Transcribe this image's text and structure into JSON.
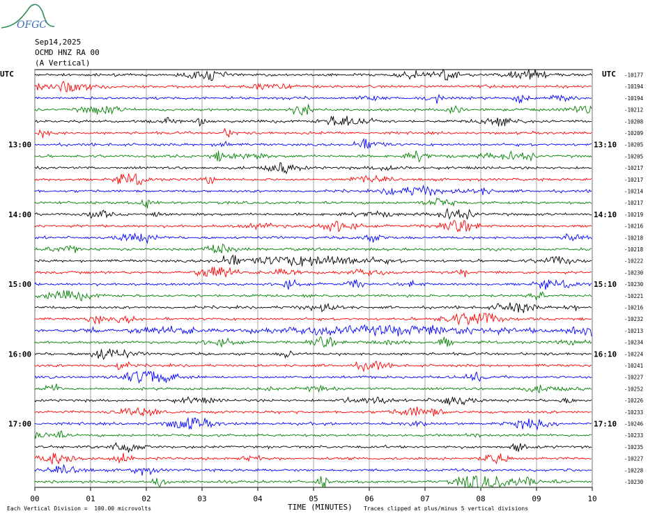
{
  "header": {
    "date": "Sep14,2025",
    "station": "OCMD HNZ RA 00",
    "component": "(A Vertical)",
    "logo_text": "OFGC"
  },
  "left_axis": {
    "unit_label": "UTC",
    "hour_labels": [
      "13:00",
      "14:00",
      "15:00",
      "16:00",
      "17:00"
    ]
  },
  "right_axis": {
    "unit_label": "UTC",
    "hour_labels": [
      "13:10",
      "14:10",
      "15:10",
      "16:10",
      "17:10"
    ],
    "offsets": [
      "-10177",
      "-10194",
      "-10194",
      "-10212",
      "-10208",
      "-10209",
      "-10205",
      "-10205",
      "-10217",
      "-10217",
      "-10214",
      "-10217",
      "-10219",
      "-10216",
      "-10218",
      "-10218",
      "-10222",
      "-10230",
      "-10230",
      "-10221",
      "-10216",
      "-10232",
      "-10213",
      "-10234",
      "-10224",
      "-10241",
      "-10227",
      "-10252",
      "-10226",
      "-10233",
      "-10246",
      "-10233",
      "-10235",
      "-10227",
      "-10228",
      "-10230"
    ]
  },
  "footer": {
    "scale_note": "Each Vertical Division =  100.00 microvolts",
    "xlabel": "TIME (MINUTES)",
    "clip_note": "Traces clipped at plus/minus 5 vertical divisions"
  },
  "chart_data": {
    "type": "line",
    "title": "",
    "xlabel": "TIME (MINUTES)",
    "ylabel": "UTC",
    "xlim": [
      0,
      10
    ],
    "xticks": [
      "00",
      "01",
      "02",
      "03",
      "04",
      "05",
      "06",
      "07",
      "08",
      "09",
      "10"
    ],
    "trace_count": 36,
    "trace_colors": [
      "#000000",
      "#ff0000",
      "#0000ff",
      "#008000"
    ],
    "grid": "vertical lines at each minute"
  }
}
